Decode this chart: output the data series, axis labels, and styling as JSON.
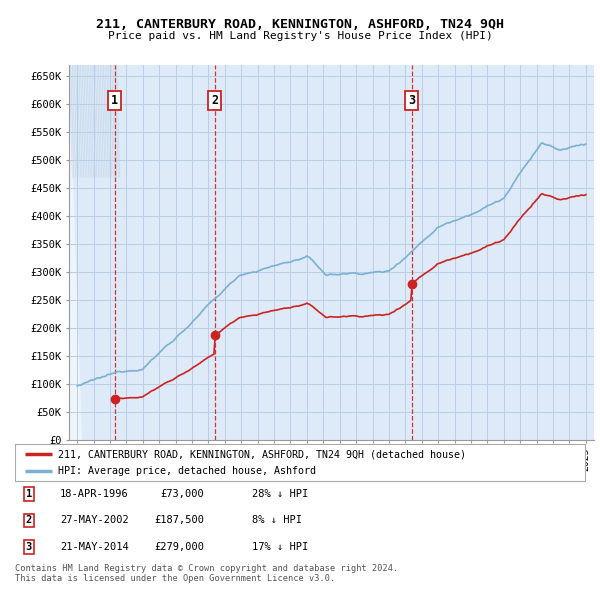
{
  "title": "211, CANTERBURY ROAD, KENNINGTON, ASHFORD, TN24 9QH",
  "subtitle": "Price paid vs. HM Land Registry's House Price Index (HPI)",
  "ylabel_ticks": [
    "£0",
    "£50K",
    "£100K",
    "£150K",
    "£200K",
    "£250K",
    "£300K",
    "£350K",
    "£400K",
    "£450K",
    "£500K",
    "£550K",
    "£600K",
    "£650K"
  ],
  "ytick_values": [
    0,
    50000,
    100000,
    150000,
    200000,
    250000,
    300000,
    350000,
    400000,
    450000,
    500000,
    550000,
    600000,
    650000
  ],
  "xlim": [
    1993.5,
    2025.5
  ],
  "ylim": [
    0,
    670000
  ],
  "purchases": [
    {
      "date_year": 1996.29,
      "price": 73000,
      "label": "1",
      "date_str": "18-APR-1996",
      "price_str": "£73,000",
      "hpi_str": "28% ↓ HPI"
    },
    {
      "date_year": 2002.38,
      "price": 187500,
      "label": "2",
      "date_str": "27-MAY-2002",
      "price_str": "£187,500",
      "hpi_str": "8% ↓ HPI"
    },
    {
      "date_year": 2014.38,
      "price": 279000,
      "label": "3",
      "date_str": "21-MAY-2014",
      "price_str": "£279,000",
      "hpi_str": "17% ↓ HPI"
    }
  ],
  "property_line_color": "#cc2222",
  "hpi_line_color": "#7ab0d4",
  "chart_bg_color": "#deeaf7",
  "background_color": "#ffffff",
  "grid_color": "#b8cfe8",
  "vline_color": "#cc2222",
  "legend_label_property": "211, CANTERBURY ROAD, KENNINGTON, ASHFORD, TN24 9QH (detached house)",
  "legend_label_hpi": "HPI: Average price, detached house, Ashford",
  "footer": "Contains HM Land Registry data © Crown copyright and database right 2024.\nThis data is licensed under the Open Government Licence v3.0.",
  "hpi_seed": 12345,
  "prop_seed": 99
}
